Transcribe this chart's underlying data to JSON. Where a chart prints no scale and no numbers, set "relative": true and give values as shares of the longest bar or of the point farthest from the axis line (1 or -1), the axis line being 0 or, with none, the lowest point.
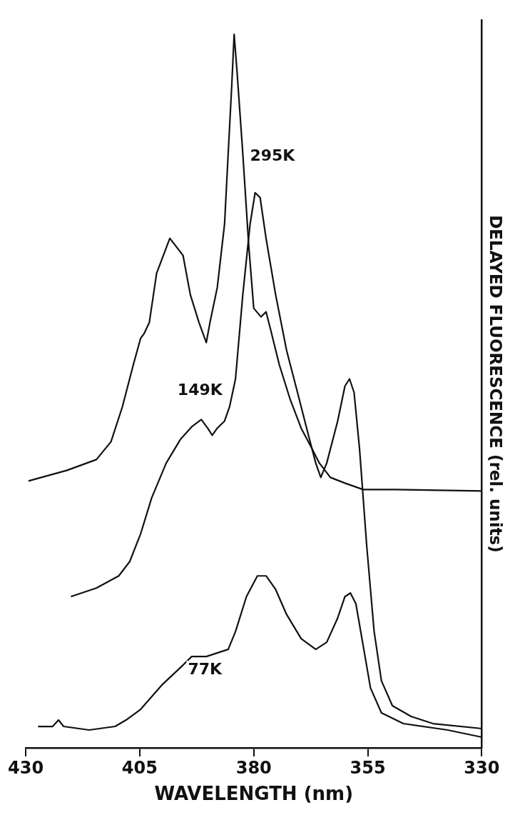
{
  "chart_data": {
    "type": "line",
    "relative": true,
    "xlabel": "WAVELENGTH (nm)",
    "ylabel": "DELAYED FLUORESCENCE (rel. units)",
    "xlim": [
      430,
      330
    ],
    "xticks": [
      430,
      405,
      380,
      355,
      330
    ],
    "grid": false,
    "legend": false,
    "marker": "none",
    "line_style": "solid",
    "series": [
      {
        "name": "295K",
        "color": "#111111",
        "x": [
          429.4,
          420.9,
          414.5,
          411.3,
          408.8,
          406.4,
          404.8,
          404.0,
          402.9,
          401.3,
          398.4,
          395.5,
          393.9,
          392.0,
          390.4,
          389.6,
          388.0,
          386.4,
          385.6,
          384.8,
          384.3,
          383.7,
          382.4,
          381.1,
          380.0,
          378.4,
          377.3,
          376.3,
          374.4,
          372.0,
          369.6,
          367.2,
          365.6,
          363.2,
          360.0,
          356.0,
          348.8,
          330.0
        ],
        "values": [
          0.374,
          0.389,
          0.404,
          0.429,
          0.478,
          0.537,
          0.574,
          0.581,
          0.596,
          0.665,
          0.714,
          0.69,
          0.635,
          0.596,
          0.568,
          0.596,
          0.645,
          0.734,
          0.833,
          0.931,
          1.0,
          0.951,
          0.833,
          0.704,
          0.616,
          0.604,
          0.611,
          0.586,
          0.537,
          0.488,
          0.448,
          0.419,
          0.399,
          0.379,
          0.371,
          0.362,
          0.362,
          0.36
        ]
      },
      {
        "name": "149K",
        "color": "#111111",
        "x": [
          420.1,
          414.5,
          409.6,
          407.2,
          404.8,
          402.4,
          399.2,
          396.0,
          393.6,
          391.5,
          390.1,
          389.1,
          388.0,
          386.4,
          385.3,
          384.0,
          382.4,
          380.8,
          379.7,
          378.6,
          377.3,
          375.2,
          372.8,
          370.4,
          368.0,
          366.4,
          365.3,
          364.0,
          361.6,
          360.0,
          359.0,
          358.0,
          356.8,
          355.2,
          353.6,
          352.0,
          349.6,
          345.5,
          340.7,
          330.0
        ],
        "values": [
          0.212,
          0.224,
          0.241,
          0.261,
          0.3,
          0.35,
          0.399,
          0.433,
          0.45,
          0.46,
          0.448,
          0.438,
          0.448,
          0.458,
          0.478,
          0.517,
          0.635,
          0.734,
          0.778,
          0.771,
          0.714,
          0.635,
          0.557,
          0.498,
          0.438,
          0.399,
          0.379,
          0.399,
          0.458,
          0.507,
          0.517,
          0.498,
          0.419,
          0.281,
          0.163,
          0.094,
          0.059,
          0.044,
          0.034,
          0.027
        ]
      },
      {
        "name": "77K",
        "color": "#111111",
        "x": [
          427.3,
          424.1,
          422.8,
          421.7,
          416.1,
          410.4,
          408.0,
          404.8,
          400.0,
          396.0,
          393.6,
          390.4,
          385.6,
          384.0,
          381.6,
          379.2,
          377.3,
          375.2,
          372.8,
          369.6,
          366.4,
          364.0,
          361.6,
          360.0,
          358.8,
          357.6,
          356.0,
          354.4,
          352.0,
          347.2,
          337.5,
          330.0
        ],
        "values": [
          0.03,
          0.03,
          0.039,
          0.03,
          0.025,
          0.03,
          0.039,
          0.054,
          0.089,
          0.113,
          0.128,
          0.128,
          0.138,
          0.163,
          0.212,
          0.241,
          0.241,
          0.222,
          0.187,
          0.153,
          0.138,
          0.148,
          0.182,
          0.212,
          0.217,
          0.202,
          0.143,
          0.084,
          0.049,
          0.034,
          0.025,
          0.015
        ]
      }
    ]
  }
}
